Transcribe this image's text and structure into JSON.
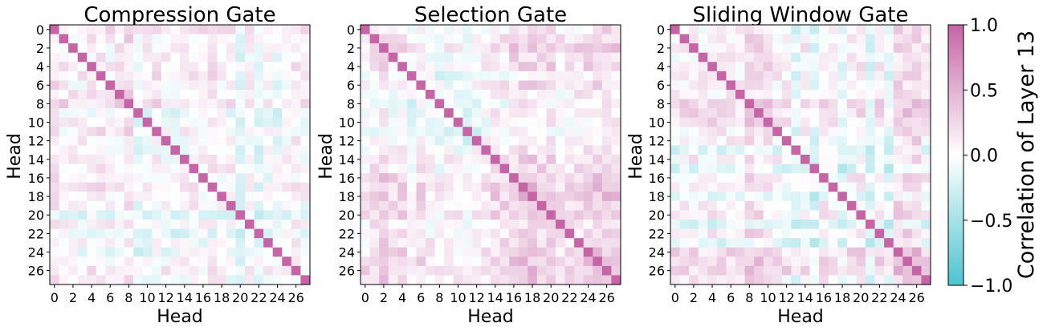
{
  "chart_data": [
    {
      "type": "heatmap",
      "title": "Compression Gate",
      "xlabel": "Head",
      "ylabel": "Head",
      "size": 28,
      "ticks": [
        0,
        2,
        4,
        6,
        8,
        10,
        12,
        14,
        16,
        18,
        20,
        22,
        24,
        26
      ],
      "value_range": [
        -1,
        1
      ],
      "mean_correlation_by_head": [
        0.25,
        0.1,
        0.05,
        0.05,
        0.15,
        0.2,
        0.05,
        0.15,
        0.3,
        -0.15,
        0.0,
        0.05,
        0.0,
        -0.05,
        0.05,
        0.1,
        0.0,
        0.05,
        0.05,
        0.0,
        -0.25,
        0.05,
        -0.2,
        -0.05,
        -0.15,
        0.05,
        0.1,
        0.0
      ],
      "diagonal": 1.0
    },
    {
      "type": "heatmap",
      "title": "Selection Gate",
      "xlabel": "Head",
      "ylabel": "Head",
      "size": 28,
      "ticks": [
        0,
        2,
        4,
        6,
        8,
        10,
        12,
        14,
        16,
        18,
        20,
        22,
        24,
        26
      ],
      "value_range": [
        -1,
        1
      ],
      "mean_correlation_by_head": [
        0.0,
        0.1,
        0.25,
        0.1,
        0.15,
        -0.1,
        0.1,
        -0.05,
        -0.15,
        -0.1,
        -0.15,
        -0.3,
        -0.05,
        0.05,
        0.2,
        0.15,
        0.3,
        0.35,
        0.35,
        0.25,
        0.3,
        0.1,
        0.15,
        0.2,
        0.3,
        0.3,
        0.4,
        0.3
      ],
      "diagonal": 1.0
    },
    {
      "type": "heatmap",
      "title": "Sliding Window Gate",
      "xlabel": "Head",
      "ylabel": "Head",
      "size": 28,
      "ticks": [
        0,
        2,
        4,
        6,
        8,
        10,
        12,
        14,
        16,
        18,
        20,
        22,
        24,
        26
      ],
      "value_range": [
        -1,
        1
      ],
      "mean_correlation_by_head": [
        0.05,
        0.05,
        0.1,
        0.05,
        0.1,
        0.05,
        0.05,
        0.1,
        0.35,
        0.3,
        0.25,
        0.1,
        0.05,
        -0.3,
        0.05,
        -0.3,
        0.1,
        0.05,
        -0.35,
        0.05,
        0.1,
        -0.35,
        0.05,
        -0.3,
        0.35,
        0.35,
        0.4,
        0.1
      ],
      "diagonal": 1.0
    }
  ],
  "colorbar": {
    "label": "Correlation of Layer 13",
    "ticks": [
      1.0,
      0.5,
      0.0,
      -0.5,
      -1.0
    ],
    "tick_labels": [
      "1.0",
      "0.5",
      "0.0",
      "−0.5",
      "−1.0"
    ],
    "colors": {
      "low": "#4bc4d0",
      "mid": "#ffffff",
      "high": "#c565a6"
    }
  }
}
